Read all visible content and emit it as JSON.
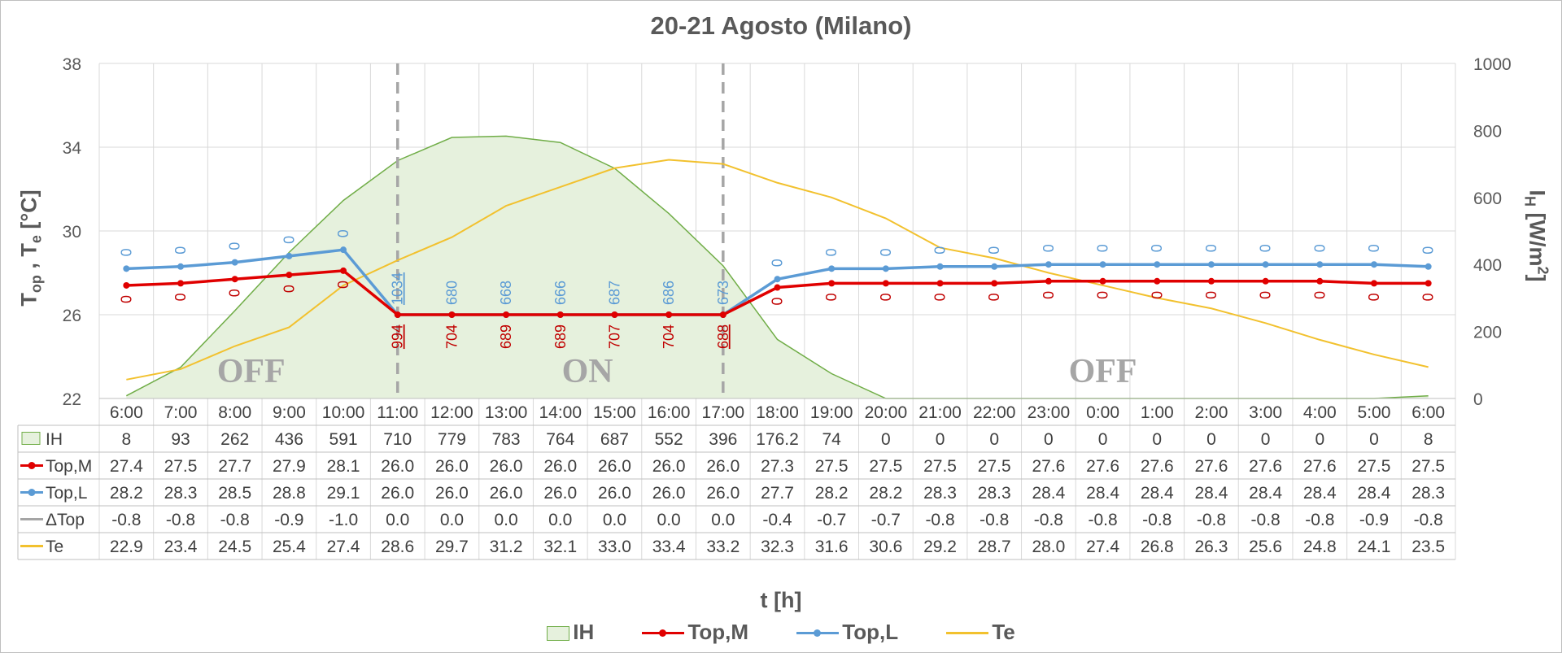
{
  "chart_data": {
    "type": "line",
    "title": "20-21 Agosto (Milano)",
    "xlabel": "t [h]",
    "ylabel_left": "T",
    "ylabel_left_sub1": "op",
    "ylabel_left_mid": " , T",
    "ylabel_left_sub2": "e",
    "ylabel_left_unit": " [°C]",
    "ylabel_right": "I",
    "ylabel_right_sub": "H",
    "ylabel_right_unit": " [W/m",
    "ylabel_right_sup": "2",
    "ylabel_right_end": "]",
    "ylim_left": [
      22,
      38
    ],
    "yticks_left": [
      "22",
      "26",
      "30",
      "34",
      "38"
    ],
    "ylim_right": [
      0,
      1000
    ],
    "yticks_right": [
      "0",
      "200",
      "400",
      "600",
      "800",
      "1000"
    ],
    "grid": true,
    "legend_position": "bottom",
    "categories": [
      "6:00",
      "7:00",
      "8:00",
      "9:00",
      "10:00",
      "11:00",
      "12:00",
      "13:00",
      "14:00",
      "15:00",
      "16:00",
      "17:00",
      "18:00",
      "19:00",
      "20:00",
      "21:00",
      "22:00",
      "23:00",
      "0:00",
      "1:00",
      "2:00",
      "3:00",
      "4:00",
      "5:00",
      "6:00"
    ],
    "series": [
      {
        "name": "IH",
        "axis": "right",
        "kind": "area",
        "color": "#70ad47",
        "fill": "#e6f1dd",
        "values": [
          8,
          93,
          262,
          436,
          591,
          710,
          779,
          783,
          764,
          687,
          552,
          396,
          176.2,
          74,
          0,
          0,
          0,
          0,
          0,
          0,
          0,
          0,
          0,
          0,
          8
        ]
      },
      {
        "name": "Top,M",
        "axis": "left",
        "kind": "line",
        "color": "#e00000",
        "marker": true,
        "values": [
          27.4,
          27.5,
          27.7,
          27.9,
          28.1,
          26.0,
          26.0,
          26.0,
          26.0,
          26.0,
          26.0,
          26.0,
          27.3,
          27.5,
          27.5,
          27.5,
          27.5,
          27.6,
          27.6,
          27.6,
          27.6,
          27.6,
          27.6,
          27.5,
          27.5
        ]
      },
      {
        "name": "Top,L",
        "axis": "left",
        "kind": "line",
        "color": "#5b9bd5",
        "marker": true,
        "values": [
          28.2,
          28.3,
          28.5,
          28.8,
          29.1,
          26.0,
          26.0,
          26.0,
          26.0,
          26.0,
          26.0,
          26.0,
          27.7,
          28.2,
          28.2,
          28.3,
          28.3,
          28.4,
          28.4,
          28.4,
          28.4,
          28.4,
          28.4,
          28.4,
          28.3
        ]
      },
      {
        "name": "ΔTop",
        "axis": "left",
        "kind": "table-only",
        "color": "#a5a5a5",
        "values": [
          -0.8,
          -0.8,
          -0.8,
          -0.9,
          -1.0,
          0.0,
          0.0,
          0.0,
          0.0,
          0.0,
          0.0,
          0.0,
          -0.4,
          -0.7,
          -0.7,
          -0.8,
          -0.8,
          -0.8,
          -0.8,
          -0.8,
          -0.8,
          -0.8,
          -0.8,
          -0.9,
          -0.8
        ]
      },
      {
        "name": "Te",
        "axis": "left",
        "kind": "line",
        "color": "#f2c12e",
        "values": [
          22.9,
          23.4,
          24.5,
          25.4,
          27.4,
          28.6,
          29.7,
          31.2,
          32.1,
          33.0,
          33.4,
          33.2,
          32.3,
          31.6,
          30.6,
          29.2,
          28.7,
          28.0,
          27.4,
          26.8,
          26.3,
          25.6,
          24.8,
          24.1,
          23.5
        ]
      }
    ],
    "table_rows": [
      {
        "series": "IH",
        "cells": [
          "8",
          "93",
          "262",
          "436",
          "591",
          "710",
          "779",
          "783",
          "764",
          "687",
          "552",
          "396",
          "176.2",
          "74",
          "0",
          "0",
          "0",
          "0",
          "0",
          "0",
          "0",
          "0",
          "0",
          "0",
          "8"
        ]
      },
      {
        "series": "Top,M",
        "cells": [
          "27.4",
          "27.5",
          "27.7",
          "27.9",
          "28.1",
          "26.0",
          "26.0",
          "26.0",
          "26.0",
          "26.0",
          "26.0",
          "26.0",
          "27.3",
          "27.5",
          "27.5",
          "27.5",
          "27.5",
          "27.6",
          "27.6",
          "27.6",
          "27.6",
          "27.6",
          "27.6",
          "27.5",
          "27.5"
        ]
      },
      {
        "series": "Top,L",
        "cells": [
          "28.2",
          "28.3",
          "28.5",
          "28.8",
          "29.1",
          "26.0",
          "26.0",
          "26.0",
          "26.0",
          "26.0",
          "26.0",
          "26.0",
          "27.7",
          "28.2",
          "28.2",
          "28.3",
          "28.3",
          "28.4",
          "28.4",
          "28.4",
          "28.4",
          "28.4",
          "28.4",
          "28.4",
          "28.3"
        ]
      },
      {
        "series": "ΔTop",
        "cells": [
          "-0.8",
          "-0.8",
          "-0.8",
          "-0.9",
          "-1.0",
          "0.0",
          "0.0",
          "0.0",
          "0.0",
          "0.0",
          "0.0",
          "0.0",
          "-0.4",
          "-0.7",
          "-0.7",
          "-0.8",
          "-0.8",
          "-0.8",
          "-0.8",
          "-0.8",
          "-0.8",
          "-0.8",
          "-0.8",
          "-0.9",
          "-0.8"
        ]
      },
      {
        "series": "Te",
        "cells": [
          "22.9",
          "23.4",
          "24.5",
          "25.4",
          "27.4",
          "28.6",
          "29.7",
          "31.2",
          "32.1",
          "33.0",
          "33.4",
          "33.2",
          "32.3",
          "31.6",
          "30.6",
          "29.2",
          "28.7",
          "28.0",
          "27.4",
          "26.8",
          "26.3",
          "25.6",
          "24.8",
          "24.1",
          "23.5"
        ]
      }
    ],
    "data_labels": {
      "top_l": [
        "0",
        "0",
        "0",
        "0",
        "0",
        "1034",
        "680",
        "668",
        "666",
        "687",
        "686",
        "673",
        "0",
        "0",
        "0",
        "0",
        "0",
        "0",
        "0",
        "0",
        "0",
        "0",
        "0",
        "0",
        "0"
      ],
      "top_m": [
        "0",
        "0",
        "0",
        "0",
        "0",
        "994",
        "704",
        "689",
        "689",
        "707",
        "704",
        "688",
        "0",
        "0",
        "0",
        "0",
        "0",
        "0",
        "0",
        "0",
        "0",
        "0",
        "0",
        "0",
        "0"
      ]
    },
    "annotations": [
      {
        "text": "OFF",
        "at_category": 2.3
      },
      {
        "text": "ON",
        "at_category": 8.5
      },
      {
        "text": "OFF",
        "at_category": 18.0
      }
    ],
    "vlines_at_categories": [
      5,
      11
    ],
    "legend": [
      "IH",
      "Top,M",
      "Top,L",
      "Te"
    ]
  }
}
